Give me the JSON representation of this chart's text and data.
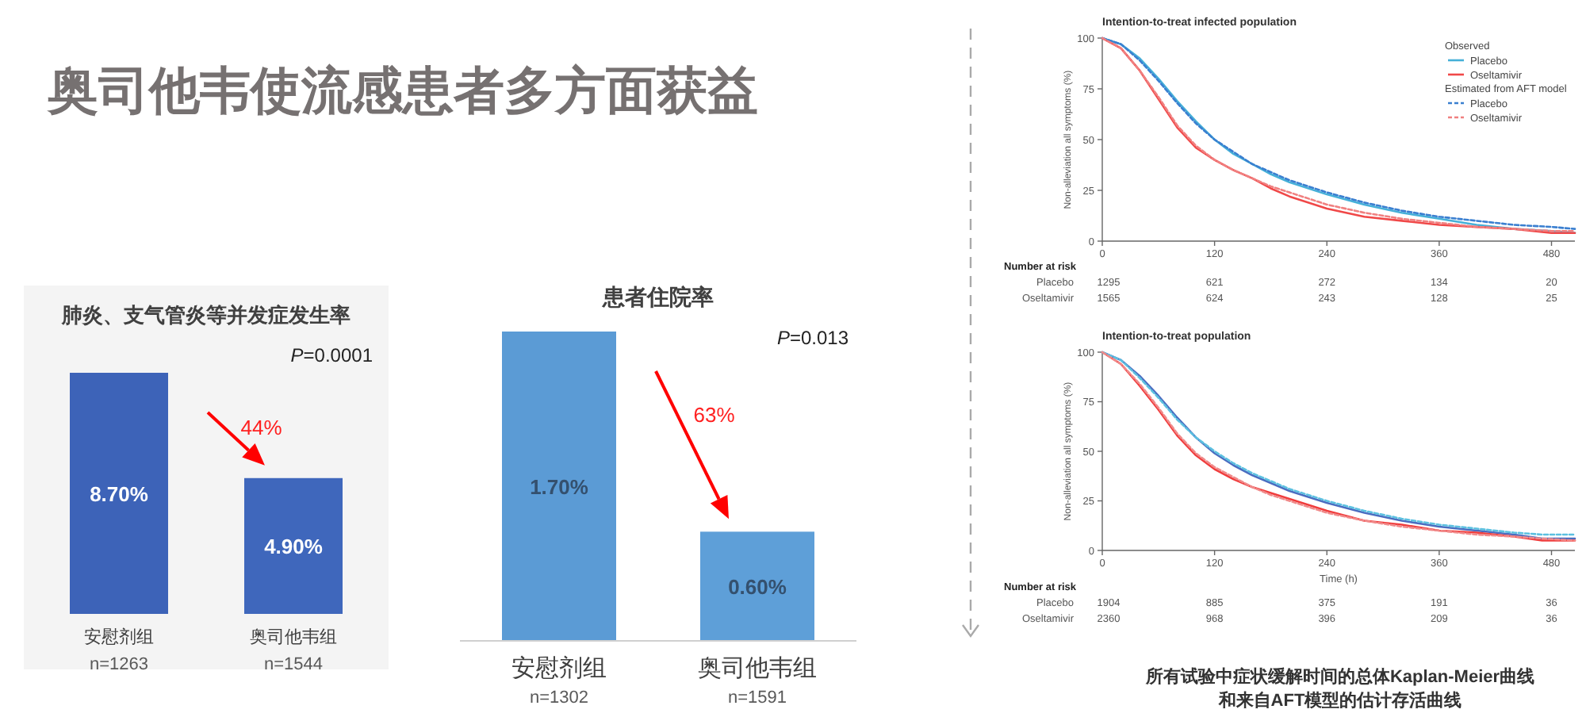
{
  "chart_data": [
    {
      "type": "other",
      "title": "奥司他韦使流感患者多方面获益"
    },
    {
      "type": "bar",
      "title": "肺炎、支气管炎等并发症发生率",
      "categories": [
        "安慰剂组",
        "奥司他韦组"
      ],
      "values": [
        8.7,
        4.9
      ],
      "value_labels": [
        "8.70%",
        "4.90%"
      ],
      "colors": [
        "#3d63b8",
        "#3f67bc"
      ],
      "annotations": [
        "*P*=0.0001",
        "44%",
        "n=1263",
        "n=1544"
      ]
    },
    {
      "type": "bar",
      "title": "患者住院率",
      "categories": [
        "安慰剂组",
        "奥司他韦组"
      ],
      "values": [
        1.7,
        0.6
      ],
      "value_labels": [
        "1.70%",
        "0.60%"
      ],
      "colors": [
        "#5b9bd5",
        "#5e9fd8"
      ],
      "annotations": [
        "*P*=0.013",
        "63%",
        "n=1302",
        "n=1591"
      ]
    },
    {
      "type": "line",
      "title": "Intention-to-treat infected population",
      "ylabel": "Non-alleviation all symptoms (%)",
      "xlim": [
        0,
        505
      ],
      "ylim": [
        0,
        100
      ],
      "xticks": [
        0,
        120,
        240,
        360,
        480
      ],
      "yticks": [
        0,
        25,
        50,
        75,
        100
      ],
      "legend": "top right",
      "legend_title": "Observed",
      "x": [
        0,
        20,
        40,
        60,
        80,
        100,
        120,
        140,
        160,
        180,
        200,
        240,
        280,
        320,
        360,
        400,
        440,
        480,
        505
      ],
      "series": [
        {
          "name": "Placebo",
          "color": "#45b0d8",
          "line_style": "solid",
          "values": [
            100,
            97,
            90,
            80,
            69,
            59,
            50,
            43,
            38,
            33,
            29,
            23,
            18,
            14,
            11,
            8,
            6,
            5,
            4
          ]
        },
        {
          "name": "Oseltamivir",
          "color": "#f04848",
          "line_style": "solid",
          "values": [
            100,
            95,
            84,
            70,
            56,
            46,
            40,
            35,
            31,
            26,
            22,
            16,
            12,
            10,
            8,
            7,
            6,
            4,
            4
          ]
        },
        {
          "name": "Placebo",
          "color": "#3a7fd0",
          "line_style": "dashed",
          "values": [
            100,
            97,
            89,
            79,
            68,
            58,
            50,
            44,
            38,
            34,
            30,
            24,
            19,
            15,
            12,
            10,
            8,
            7,
            6
          ]
        },
        {
          "name": "Oseltamivir",
          "color": "#f08080",
          "line_style": "dashed",
          "values": [
            100,
            95,
            84,
            71,
            57,
            47,
            40,
            35,
            31,
            27,
            24,
            18,
            14,
            11,
            9,
            7,
            6,
            5,
            5
          ]
        }
      ],
      "annotations": [
        "Estimated from AFT model",
        "Number at risk",
        "Placebo",
        "Oseltamivir",
        "1295",
        "621",
        "272",
        "134",
        "20",
        "1565",
        "624",
        "243",
        "128",
        "25"
      ]
    },
    {
      "type": "line",
      "title": "Intention-to-treat population",
      "xlabel": "Time (h)",
      "ylabel": "Non-alleviation all symptoms (%)",
      "xlim": [
        0,
        505
      ],
      "ylim": [
        0,
        100
      ],
      "xticks": [
        0,
        120,
        240,
        360,
        480
      ],
      "yticks": [
        0,
        25,
        50,
        75,
        100
      ],
      "x": [
        0,
        20,
        40,
        60,
        80,
        100,
        120,
        140,
        160,
        180,
        200,
        240,
        280,
        320,
        360,
        400,
        440,
        470,
        505
      ],
      "series": [
        {
          "color": "#4a6cc0",
          "line_style": "solid",
          "values": [
            100,
            96,
            88,
            78,
            67,
            57,
            49,
            43,
            38,
            34,
            30,
            24,
            19,
            15,
            12,
            10,
            8,
            6,
            6
          ]
        },
        {
          "color": "#f03c3c",
          "line_style": "solid",
          "values": [
            100,
            94,
            83,
            71,
            58,
            48,
            41,
            36,
            32,
            29,
            26,
            20,
            15,
            13,
            10,
            9,
            7,
            5,
            5
          ]
        },
        {
          "color": "#5cc0e0",
          "line_style": "dashed",
          "values": [
            100,
            96,
            87,
            77,
            66,
            57,
            50,
            44,
            39,
            35,
            31,
            25,
            20,
            16,
            13,
            11,
            9,
            8,
            8
          ]
        },
        {
          "color": "#f08a8a",
          "line_style": "dashed",
          "values": [
            100,
            94,
            84,
            72,
            59,
            49,
            42,
            37,
            32,
            28,
            25,
            19,
            15,
            12,
            10,
            8,
            7,
            6,
            5
          ]
        }
      ],
      "annotations": [
        "Number at risk",
        "Placebo",
        "Oseltamivir",
        "1904",
        "885",
        "375",
        "191",
        "36",
        "2360",
        "968",
        "396",
        "209",
        "36",
        "所有试验中症状缓解时间的总体Kaplan-Meier曲线",
        "和来自AFT模型的估计存活曲线"
      ]
    }
  ]
}
